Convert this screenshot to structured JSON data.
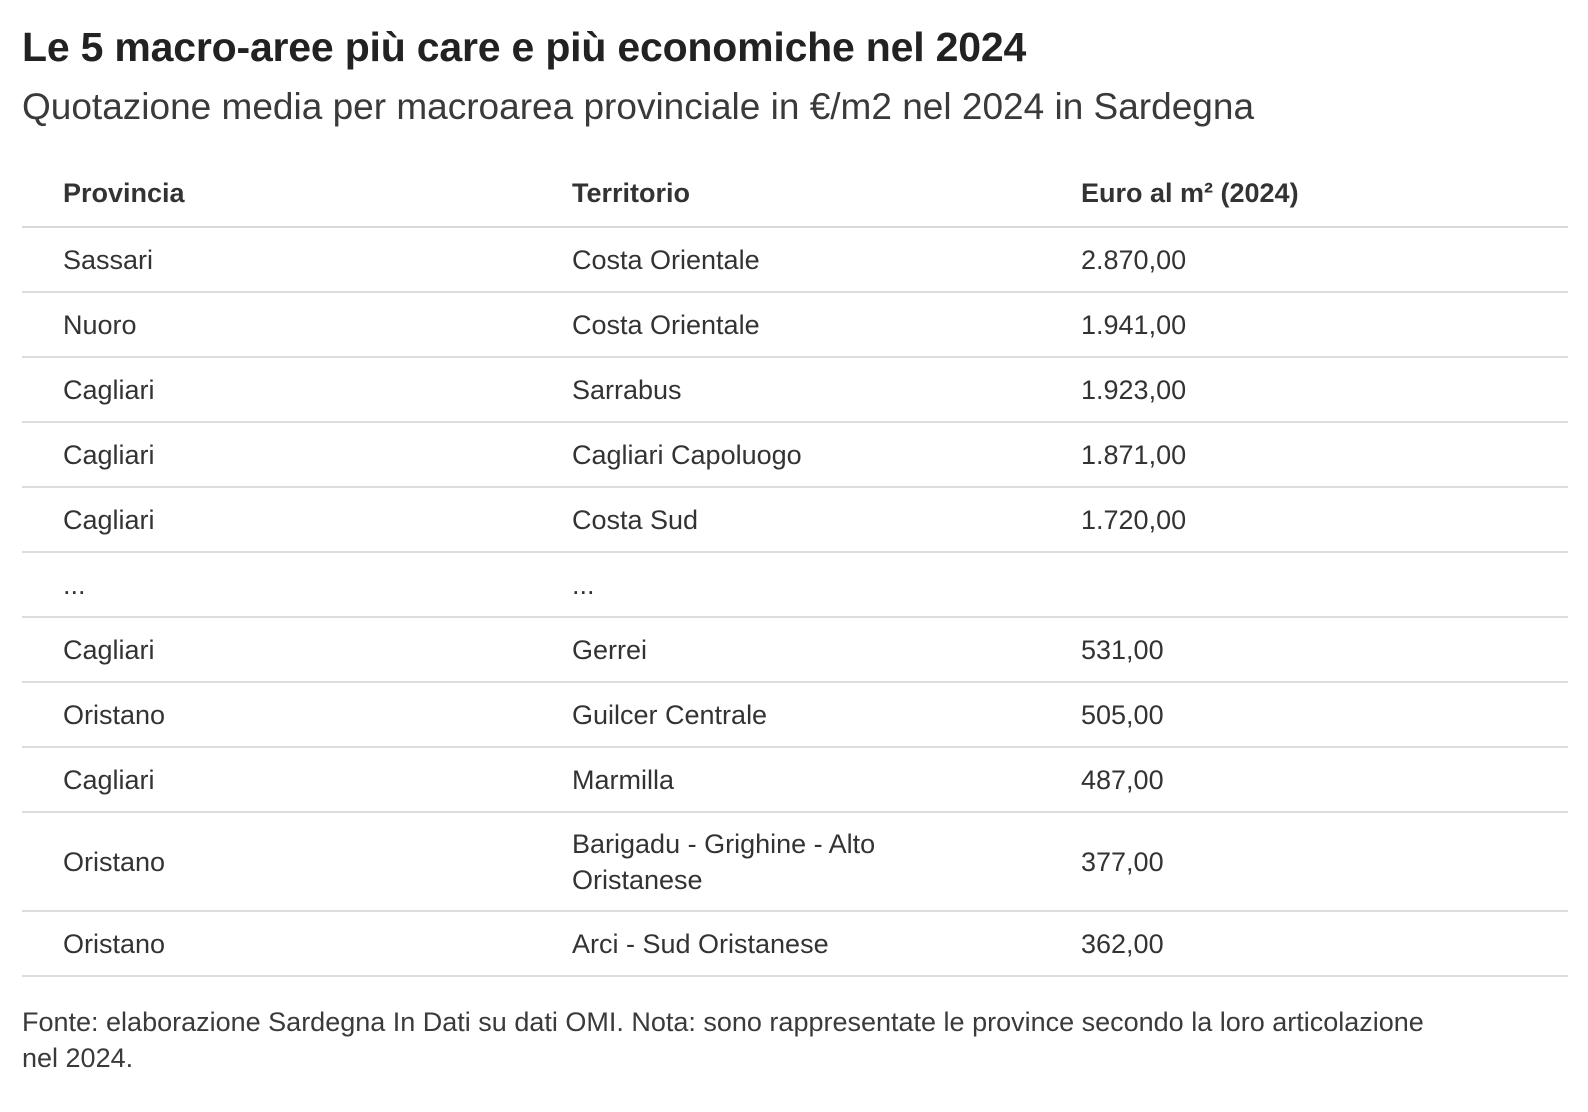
{
  "chart_data": {
    "type": "table",
    "title": "Le 5 macro-aree più care e più economiche nel 2024",
    "subtitle": "Quotazione media per macroarea provinciale in €/m2 nel 2024 in Sardegna",
    "columns": [
      "Provincia",
      "Territorio",
      "Euro al m² (2024)"
    ],
    "rows": [
      {
        "provincia": "Sassari",
        "territorio": "Costa Orientale",
        "euro": "2.870,00",
        "value": 2870
      },
      {
        "provincia": "Nuoro",
        "territorio": "Costa Orientale",
        "euro": "1.941,00",
        "value": 1941
      },
      {
        "provincia": "Cagliari",
        "territorio": "Sarrabus",
        "euro": "1.923,00",
        "value": 1923
      },
      {
        "provincia": "Cagliari",
        "territorio": "Cagliari Capoluogo",
        "euro": "1.871,00",
        "value": 1871
      },
      {
        "provincia": "Cagliari",
        "territorio": "Costa Sud",
        "euro": "1.720,00",
        "value": 1720
      },
      {
        "provincia": "...",
        "territorio": "...",
        "euro": "",
        "value": null
      },
      {
        "provincia": "Cagliari",
        "territorio": "Gerrei",
        "euro": "531,00",
        "value": 531
      },
      {
        "provincia": "Oristano",
        "territorio": "Guilcer Centrale",
        "euro": "505,00",
        "value": 505
      },
      {
        "provincia": "Cagliari",
        "territorio": "Marmilla",
        "euro": "487,00",
        "value": 487
      },
      {
        "provincia": "Oristano",
        "territorio": "Barigadu - Grighine - Alto Oristanese",
        "euro": "377,00",
        "value": 377
      },
      {
        "provincia": "Oristano",
        "territorio": "Arci - Sud Oristanese",
        "euro": "362,00",
        "value": 362
      }
    ],
    "source": "Fonte: elaborazione Sardegna In Dati su dati OMI. Nota: sono rappresentate le province secondo la loro articolazione nel 2024."
  }
}
